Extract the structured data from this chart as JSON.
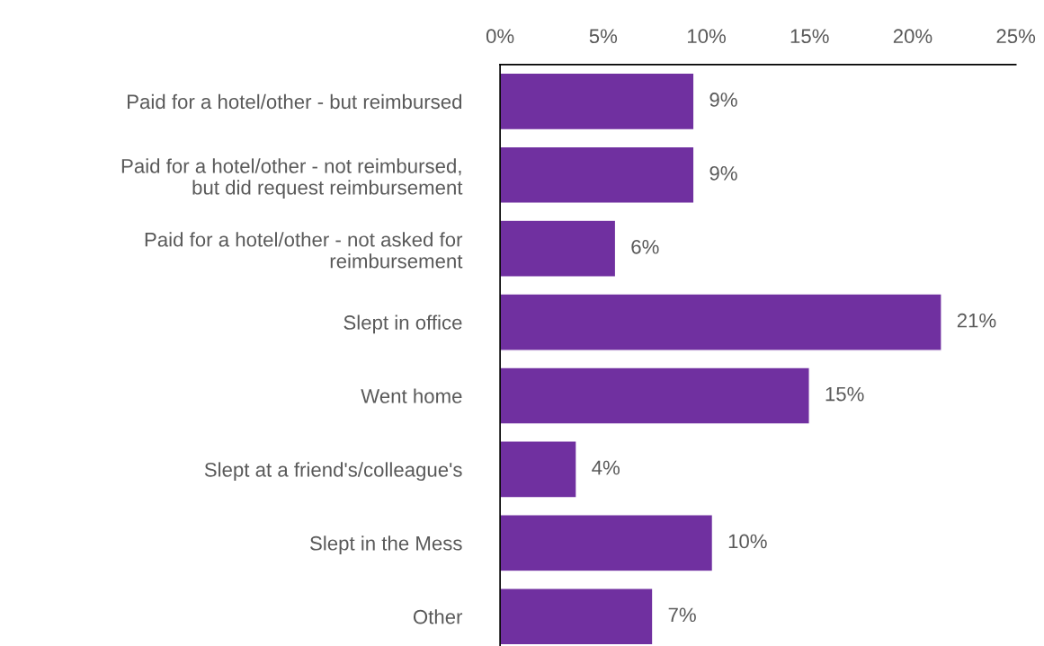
{
  "chart_data": {
    "type": "bar",
    "orientation": "horizontal",
    "categories": [
      "Paid for a hotel/other - but reimbursed",
      "Paid for a hotel/other - not reimbursed,\nbut did request reimbursement",
      "Paid for a hotel/other - not asked for\nreimbursement",
      "Slept in office",
      "Went home",
      "Slept at a friend's/colleague's",
      "Slept in the Mess",
      "Other"
    ],
    "values": [
      9.4,
      9.4,
      5.6,
      21.4,
      15.0,
      3.7,
      10.3,
      7.4
    ],
    "value_labels": [
      "9%",
      "9%",
      "6%",
      "21%",
      "15%",
      "4%",
      "10%",
      "7%"
    ],
    "color": "#7030a0",
    "xlim": [
      0,
      25
    ],
    "xticks": [
      {
        "value": 0,
        "label": "0%"
      },
      {
        "value": 5,
        "label": "5%"
      },
      {
        "value": 10,
        "label": "10%"
      },
      {
        "value": 15,
        "label": "15%"
      },
      {
        "value": 20,
        "label": "20%"
      },
      {
        "value": 25,
        "label": "25%"
      }
    ],
    "grid": false,
    "legend": false
  }
}
